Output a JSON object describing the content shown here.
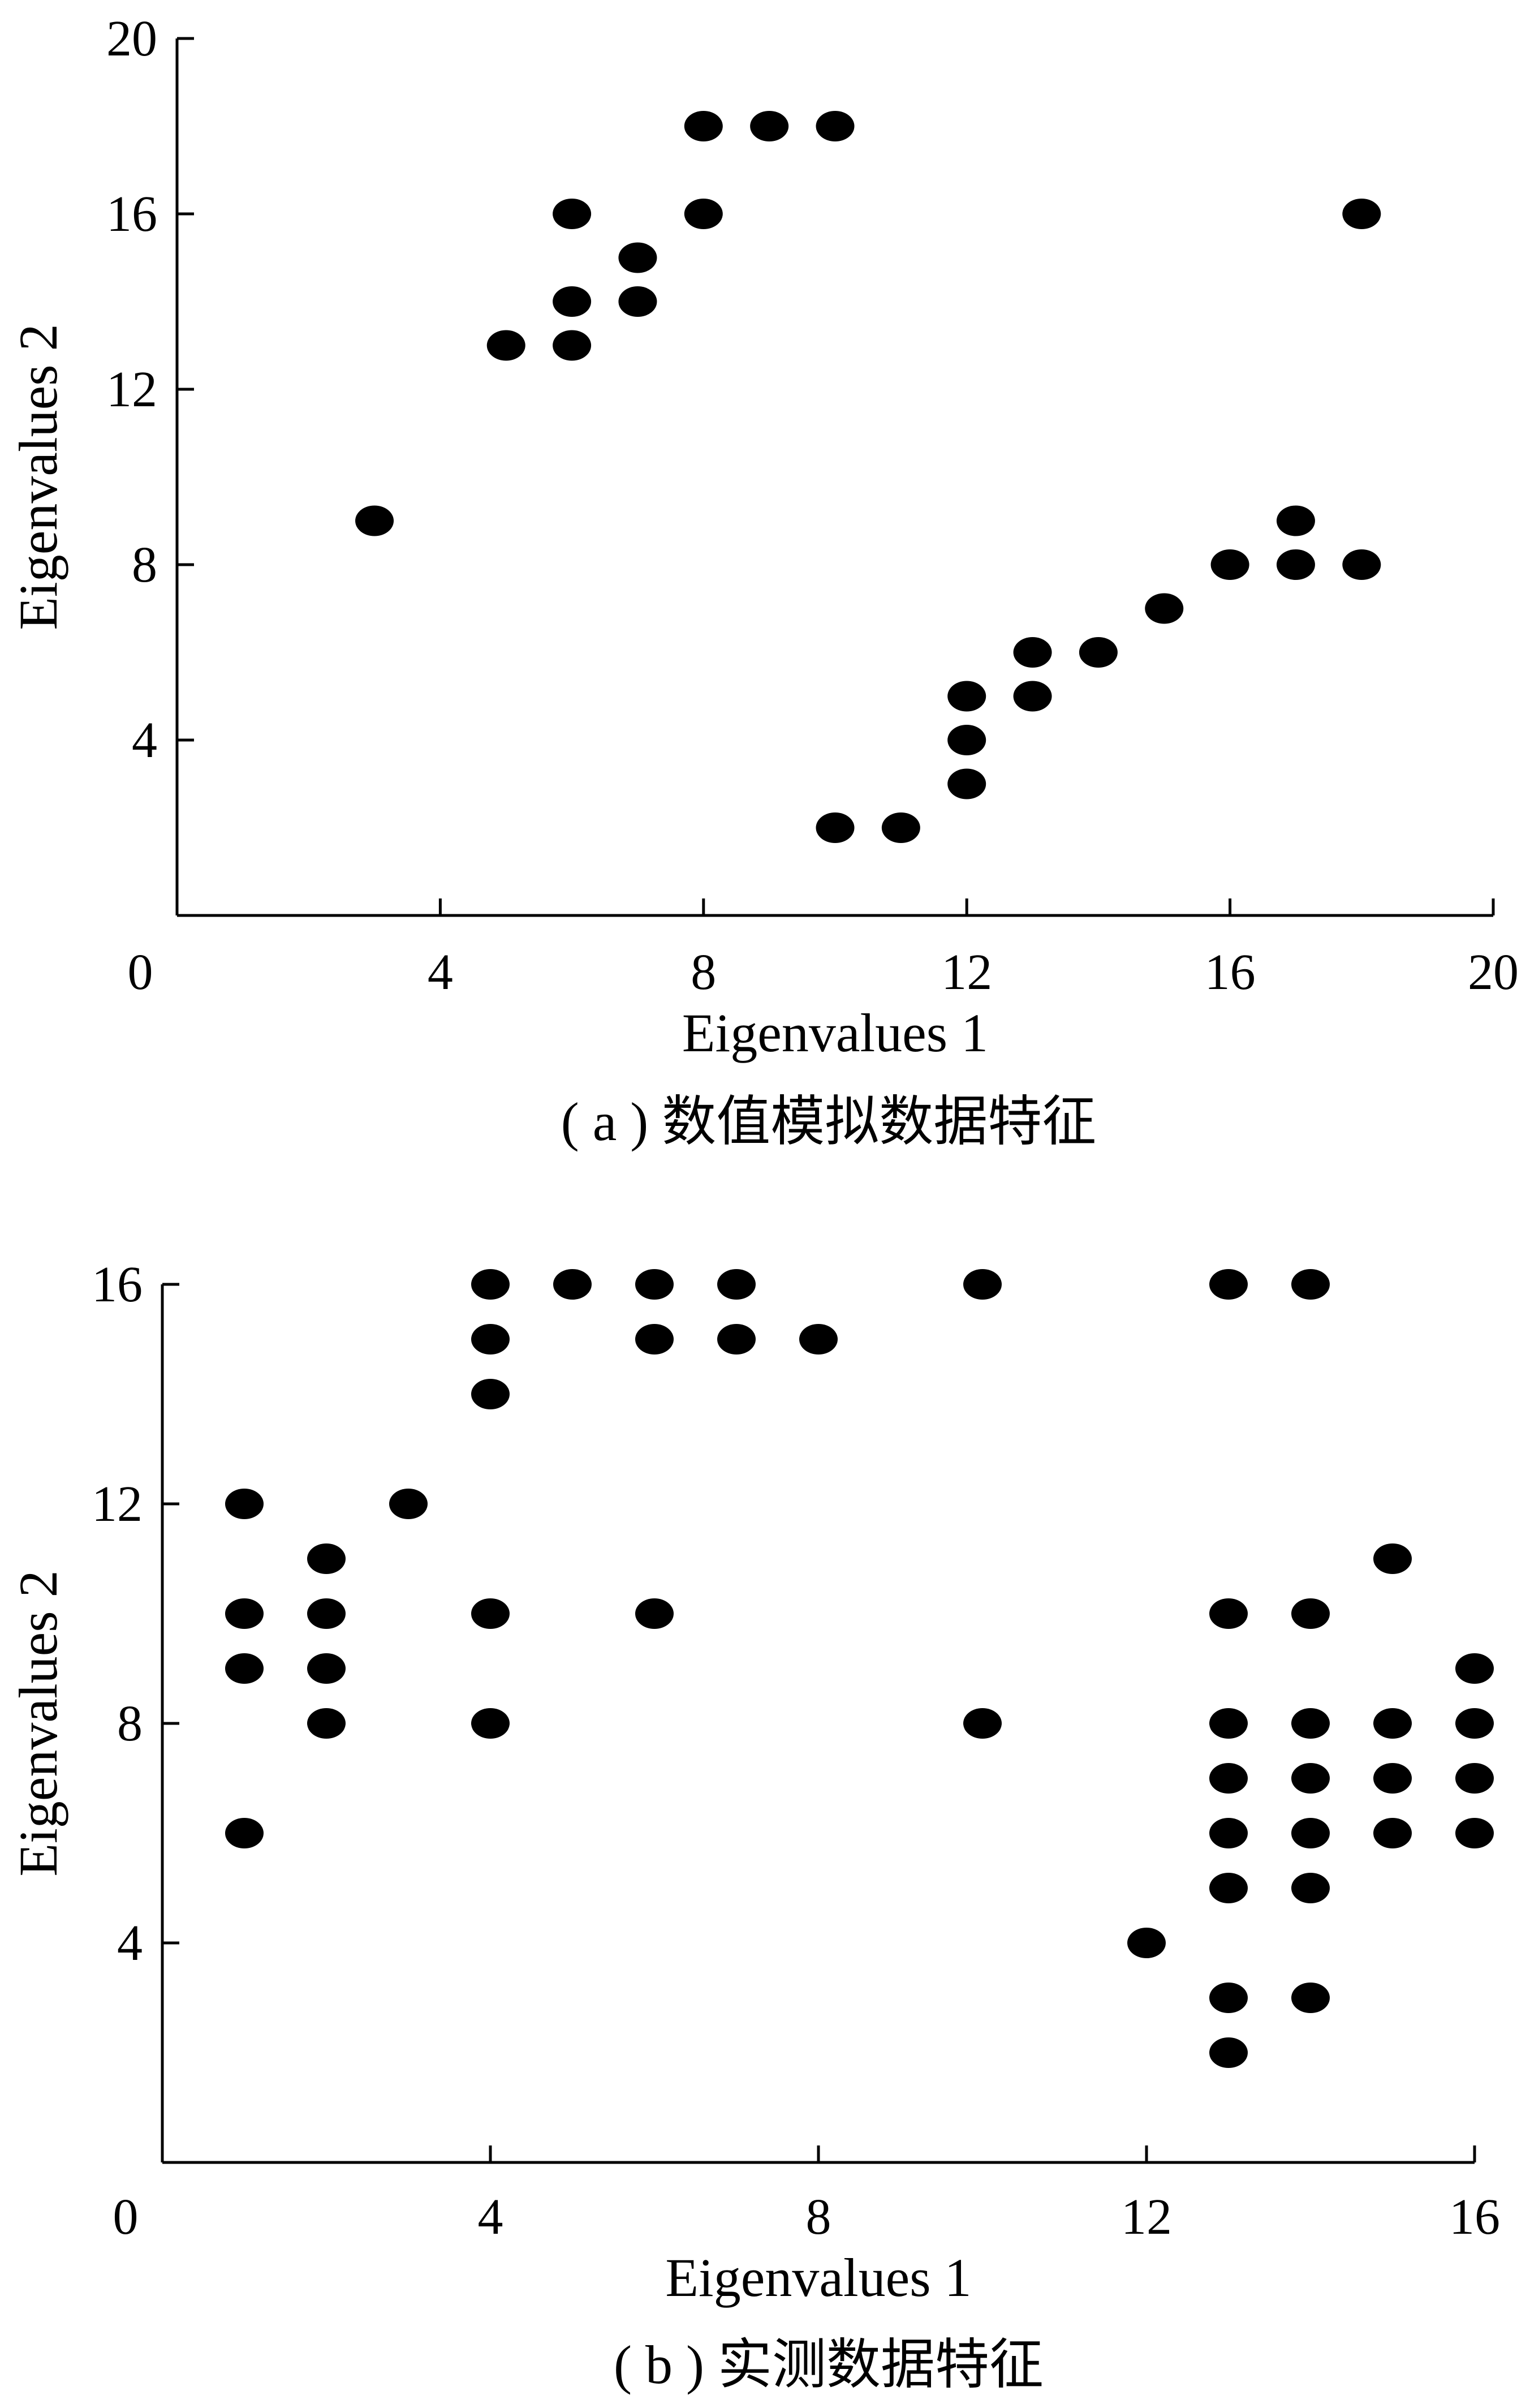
{
  "chart_data": [
    {
      "type": "scatter",
      "caption": "( a ) 数值模拟数据特征",
      "xlabel": "Eigenvalues 1",
      "ylabel": "Eigenvalues 2",
      "xlim": [
        0,
        20
      ],
      "ylim": [
        0,
        20
      ],
      "xticks": [
        0,
        4,
        8,
        12,
        16,
        20
      ],
      "yticks": [
        4,
        8,
        12,
        16,
        20
      ],
      "origin_label": "0",
      "grid": false,
      "marker_color": "#000000",
      "points": [
        [
          3,
          9
        ],
        [
          5,
          13
        ],
        [
          6,
          13
        ],
        [
          6,
          14
        ],
        [
          6,
          16
        ],
        [
          7,
          14
        ],
        [
          7,
          15
        ],
        [
          8,
          16
        ],
        [
          8,
          18
        ],
        [
          9,
          18
        ],
        [
          10,
          18
        ],
        [
          18,
          16
        ],
        [
          10,
          2
        ],
        [
          11,
          2
        ],
        [
          12,
          3
        ],
        [
          12,
          4
        ],
        [
          12,
          5
        ],
        [
          13,
          5
        ],
        [
          13,
          6
        ],
        [
          14,
          6
        ],
        [
          15,
          7
        ],
        [
          16,
          8
        ],
        [
          17,
          8
        ],
        [
          17,
          9
        ],
        [
          18,
          8
        ]
      ]
    },
    {
      "type": "scatter",
      "caption": "( b ) 实测数据特征",
      "xlabel": "Eigenvalues 1",
      "ylabel": "Eigenvalues 2",
      "xlim": [
        0,
        16
      ],
      "ylim": [
        0,
        16
      ],
      "xticks": [
        0,
        4,
        8,
        12,
        16
      ],
      "yticks": [
        4,
        8,
        12,
        16
      ],
      "origin_label": "0",
      "grid": false,
      "marker_color": "#000000",
      "points": [
        [
          1,
          6
        ],
        [
          1,
          9
        ],
        [
          1,
          10
        ],
        [
          1,
          12
        ],
        [
          2,
          8
        ],
        [
          2,
          9
        ],
        [
          2,
          10
        ],
        [
          2,
          11
        ],
        [
          3,
          12
        ],
        [
          4,
          8
        ],
        [
          4,
          10
        ],
        [
          4,
          14
        ],
        [
          4,
          15
        ],
        [
          4,
          16
        ],
        [
          5,
          16
        ],
        [
          6,
          10
        ],
        [
          6,
          15
        ],
        [
          6,
          16
        ],
        [
          7,
          15
        ],
        [
          7,
          16
        ],
        [
          8,
          15
        ],
        [
          10,
          8
        ],
        [
          10,
          16
        ],
        [
          12,
          4
        ],
        [
          13,
          2
        ],
        [
          13,
          3
        ],
        [
          13,
          5
        ],
        [
          13,
          6
        ],
        [
          13,
          7
        ],
        [
          13,
          8
        ],
        [
          13,
          10
        ],
        [
          13,
          16
        ],
        [
          14,
          3
        ],
        [
          14,
          5
        ],
        [
          14,
          6
        ],
        [
          14,
          7
        ],
        [
          14,
          8
        ],
        [
          14,
          10
        ],
        [
          14,
          16
        ],
        [
          15,
          6
        ],
        [
          15,
          7
        ],
        [
          15,
          8
        ],
        [
          15,
          11
        ],
        [
          16,
          6
        ],
        [
          16,
          7
        ],
        [
          16,
          8
        ],
        [
          16,
          9
        ]
      ]
    }
  ]
}
